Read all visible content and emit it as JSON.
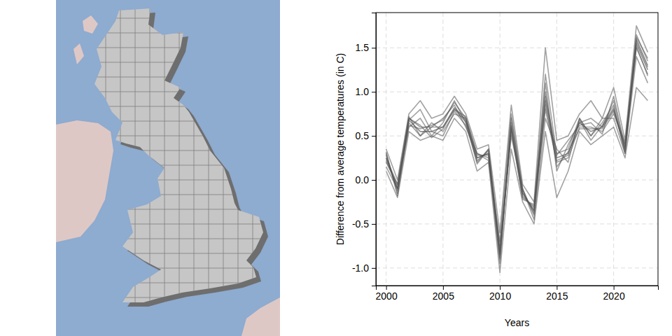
{
  "chart_data": {
    "type": "line",
    "x_label": "Years",
    "y_label": "Difference from average temperatures (in C)",
    "x": [
      2000,
      2001,
      2002,
      2003,
      2004,
      2005,
      2006,
      2007,
      2008,
      2009,
      2010,
      2011,
      2012,
      2013,
      2014,
      2015,
      2016,
      2017,
      2018,
      2019,
      2020,
      2021,
      2022,
      2023
    ],
    "series": [
      {
        "color": "#333333",
        "values": [
          0.25,
          -0.1,
          0.68,
          0.55,
          0.55,
          0.6,
          0.82,
          0.68,
          0.25,
          0.3,
          -0.85,
          0.6,
          -0.15,
          -0.35,
          0.9,
          0.25,
          0.3,
          0.65,
          0.55,
          0.6,
          0.8,
          0.35,
          1.55,
          1.25
        ]
      },
      {
        "color": "#555555",
        "values": [
          0.35,
          0.0,
          0.75,
          0.9,
          0.7,
          0.75,
          0.95,
          0.75,
          0.35,
          0.4,
          -0.6,
          0.85,
          -0.05,
          -0.25,
          1.5,
          0.45,
          0.5,
          0.75,
          0.9,
          0.7,
          1.05,
          0.45,
          1.75,
          1.45
        ]
      },
      {
        "color": "#555555",
        "values": [
          0.1,
          -0.2,
          0.55,
          0.45,
          0.5,
          0.45,
          0.7,
          0.55,
          0.1,
          0.2,
          -1.05,
          0.35,
          -0.25,
          -0.5,
          0.55,
          -0.2,
          0.1,
          0.55,
          0.4,
          0.5,
          0.6,
          0.25,
          1.05,
          0.9
        ]
      },
      {
        "color": "#555555",
        "values": [
          0.2,
          -0.05,
          0.7,
          0.6,
          0.6,
          0.7,
          0.85,
          0.6,
          0.3,
          0.25,
          -0.9,
          0.7,
          -0.1,
          -0.4,
          0.95,
          0.3,
          0.35,
          0.7,
          0.5,
          0.65,
          0.85,
          0.3,
          1.6,
          1.3
        ]
      },
      {
        "color": "#555555",
        "values": [
          0.3,
          -0.15,
          0.65,
          0.5,
          0.65,
          0.55,
          0.75,
          0.7,
          0.2,
          0.35,
          -0.75,
          0.55,
          -0.2,
          -0.3,
          0.8,
          0.2,
          0.25,
          0.6,
          0.6,
          0.55,
          0.75,
          0.4,
          1.5,
          1.2
        ]
      },
      {
        "color": "#555555",
        "values": [
          0.15,
          -0.1,
          0.6,
          0.7,
          0.5,
          0.65,
          0.9,
          0.65,
          0.25,
          0.3,
          -0.95,
          0.65,
          -0.15,
          -0.35,
          1.1,
          0.1,
          0.4,
          0.65,
          0.7,
          0.6,
          0.9,
          0.35,
          1.65,
          1.35
        ]
      },
      {
        "color": "#555555",
        "values": [
          0.25,
          -0.05,
          0.72,
          0.5,
          0.6,
          0.6,
          0.8,
          0.72,
          0.28,
          0.28,
          -0.8,
          0.5,
          -0.1,
          -0.45,
          0.7,
          0.35,
          0.2,
          0.7,
          0.5,
          0.7,
          0.7,
          0.3,
          1.4,
          1.1
        ]
      },
      {
        "color": "#555555",
        "values": [
          0.28,
          -0.12,
          0.68,
          0.8,
          0.55,
          0.5,
          0.78,
          0.62,
          0.22,
          0.33,
          -0.88,
          0.62,
          -0.18,
          -0.32,
          1.2,
          0.28,
          0.45,
          0.62,
          0.65,
          0.52,
          0.95,
          0.38,
          1.58,
          1.28
        ]
      },
      {
        "color": "#555555",
        "values": [
          0.22,
          -0.08,
          0.62,
          0.58,
          0.62,
          0.68,
          0.88,
          0.7,
          0.3,
          0.22,
          -0.7,
          0.75,
          -0.12,
          -0.38,
          0.85,
          0.22,
          0.28,
          0.68,
          0.45,
          0.62,
          0.82,
          0.32,
          1.52,
          1.18
        ]
      },
      {
        "color": "#555555",
        "values": [
          0.32,
          -0.18,
          0.7,
          0.62,
          0.48,
          0.58,
          0.8,
          0.66,
          0.18,
          0.35,
          -0.82,
          0.58,
          -0.22,
          -0.28,
          1.0,
          0.15,
          0.32,
          0.58,
          0.58,
          0.58,
          0.78,
          0.42,
          1.62,
          1.38
        ]
      }
    ],
    "xlim": [
      1999.1,
      2023.9
    ],
    "xticks": [
      2000,
      2005,
      2010,
      2015,
      2020
    ],
    "ylim": [
      -1.2,
      1.9
    ],
    "yticks": [
      {
        "value": -1,
        "label": "-1.0"
      },
      -0.5,
      {
        "value": 0,
        "label": "0.0"
      },
      0.5,
      {
        "value": 1,
        "label": "1.0"
      },
      1.5
    ],
    "grid": true
  }
}
